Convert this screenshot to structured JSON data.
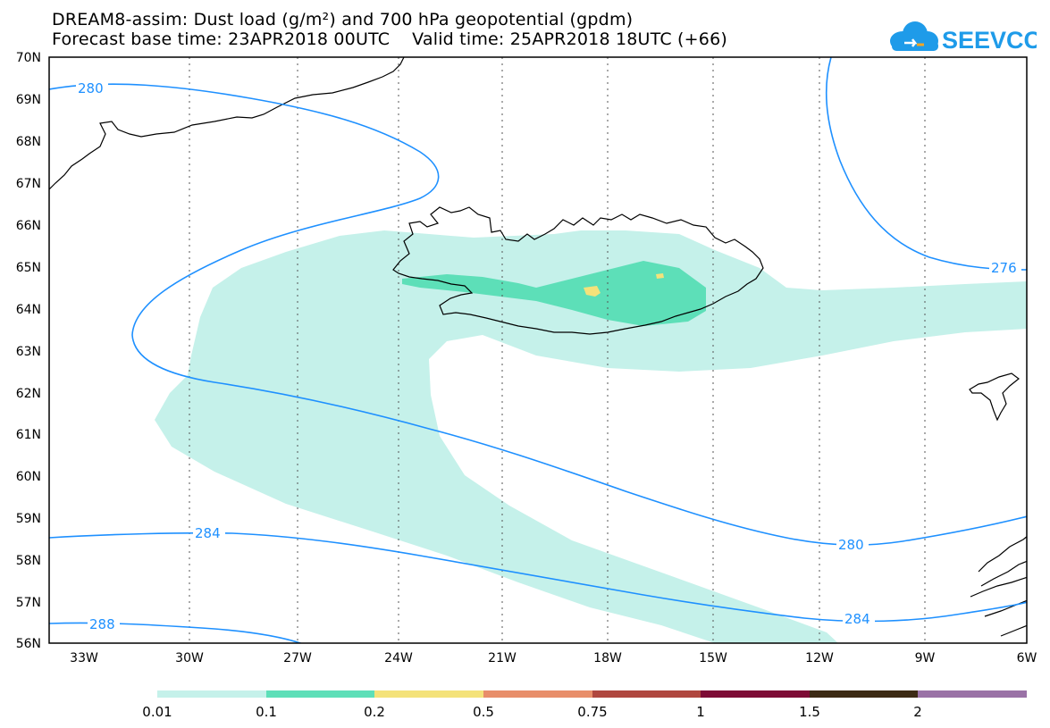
{
  "header": {
    "title_line1": "DREAM8-assim: Dust load (g/m²) and 700 hPa geopotential (gpdm)",
    "title_line2": "Forecast base time: 23APR2018 00UTC    Valid time: 25APR2018 18UTC (+66)"
  },
  "logo": {
    "text": "SEEVCCC",
    "icon": "cloud-icon",
    "color": "#1e9be9"
  },
  "map": {
    "lat_labels": [
      "70N",
      "69N",
      "68N",
      "67N",
      "66N",
      "65N",
      "64N",
      "63N",
      "62N",
      "61N",
      "60N",
      "59N",
      "58N",
      "57N",
      "56N"
    ],
    "lon_labels": [
      "33W",
      "30W",
      "27W",
      "24W",
      "21W",
      "18W",
      "15W",
      "12W",
      "9W",
      "6W"
    ],
    "contour_labels": {
      "c280_nw": "280",
      "c276_e": "276",
      "c284_w": "284",
      "c280_se": "280",
      "c284_se": "284",
      "c288_sw": "288"
    },
    "contour_color": "#1e90ff",
    "coast_color": "#000000"
  },
  "colorbar": {
    "labels": [
      "0.01",
      "0.1",
      "0.2",
      "0.5",
      "0.75",
      "1",
      "1.5",
      "2"
    ],
    "colors": [
      "#c5f1ea",
      "#5ddfb8",
      "#f4e27a",
      "#e88e6a",
      "#b0473f",
      "#7d0b35",
      "#3c2a14",
      "#9a72a6"
    ]
  }
}
